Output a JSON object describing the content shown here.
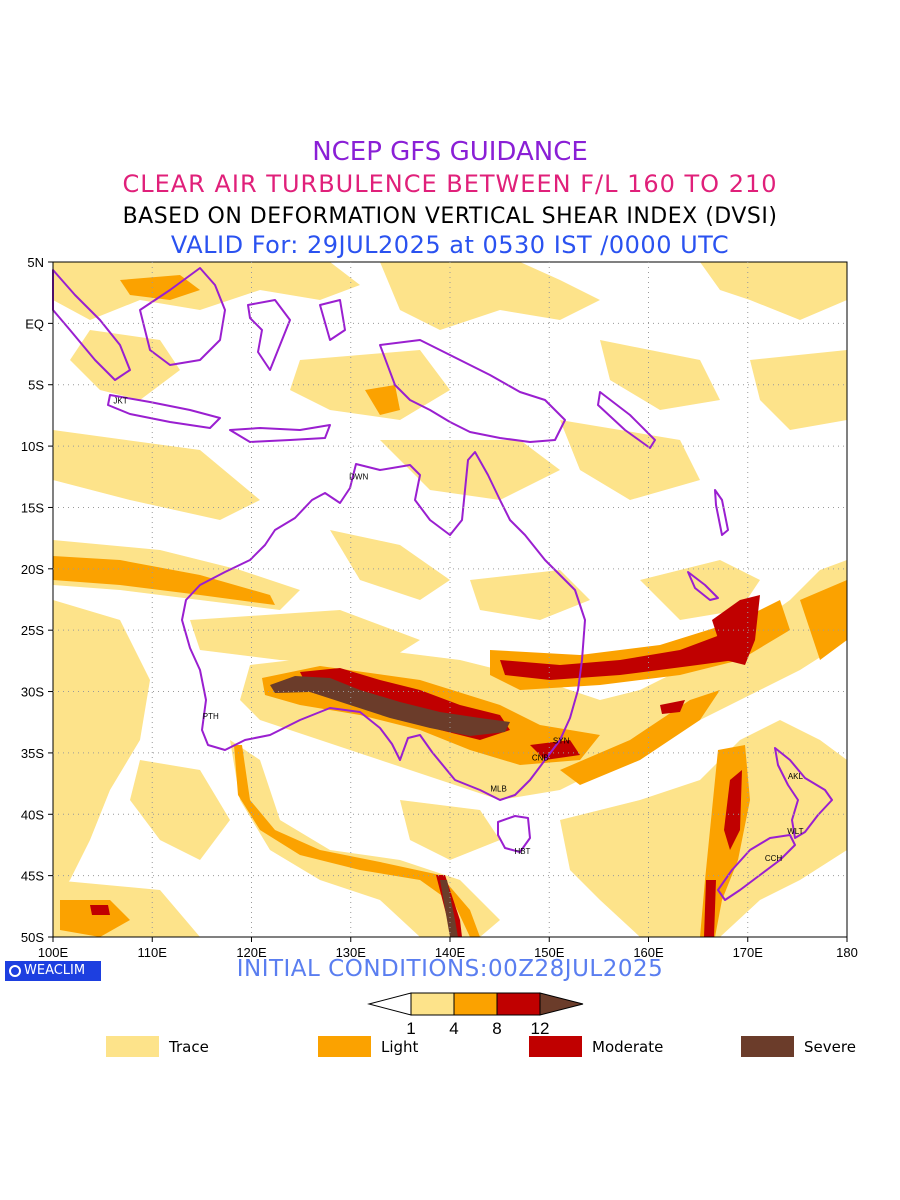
{
  "header": {
    "model": "NCEP GFS GUIDANCE",
    "product": "CLEAR AIR TURBULENCE BETWEEN F/L 160 TO 210",
    "basis": "BASED ON DEFORMATION VERTICAL SHEAR INDEX (DVSI)",
    "valid": "VALID For: 29JUL2025 at 0530 IST /0000 UTC"
  },
  "map": {
    "lat_range": [
      -50,
      5
    ],
    "lon_range": [
      100,
      180
    ],
    "lat_ticks": [
      "5N",
      "EQ",
      "5S",
      "10S",
      "15S",
      "20S",
      "25S",
      "30S",
      "35S",
      "40S",
      "45S",
      "50S"
    ],
    "lon_ticks": [
      "100E",
      "110E",
      "120E",
      "130E",
      "140E",
      "150E",
      "160E",
      "170E",
      "180"
    ],
    "gridlines": true,
    "coastline_color": "#9a1fd0",
    "stations": [
      {
        "code": "JKT",
        "lon": 106.8,
        "lat": -6.2
      },
      {
        "code": "DWN",
        "lon": 130.8,
        "lat": -12.4
      },
      {
        "code": "PTH",
        "lon": 115.9,
        "lat": -31.9
      },
      {
        "code": "SYN",
        "lon": 151.2,
        "lat": -33.9
      },
      {
        "code": "CNB",
        "lon": 149.1,
        "lat": -35.3
      },
      {
        "code": "MLB",
        "lon": 144.9,
        "lat": -37.8
      },
      {
        "code": "HBT",
        "lon": 147.3,
        "lat": -42.9
      },
      {
        "code": "AKL",
        "lon": 174.8,
        "lat": -36.8
      },
      {
        "code": "WLT",
        "lon": 174.8,
        "lat": -41.3
      },
      {
        "code": "CCH",
        "lon": 172.6,
        "lat": -43.5
      }
    ]
  },
  "footer": {
    "badge": "WEACLIM",
    "initial": "INITIAL CONDITIONS:00Z28JUL2025"
  },
  "colorbar": {
    "ticks": [
      "1",
      "4",
      "8",
      "12"
    ],
    "colors": [
      "#ffffff",
      "#fde38a",
      "#fba200",
      "#c00000",
      "#6b3c2a"
    ]
  },
  "legend": [
    {
      "label": "Trace",
      "color": "#fde38a"
    },
    {
      "label": "Light",
      "color": "#fba200"
    },
    {
      "label": "Moderate",
      "color": "#c00000"
    },
    {
      "label": "Severe",
      "color": "#6b3c2a"
    }
  ]
}
